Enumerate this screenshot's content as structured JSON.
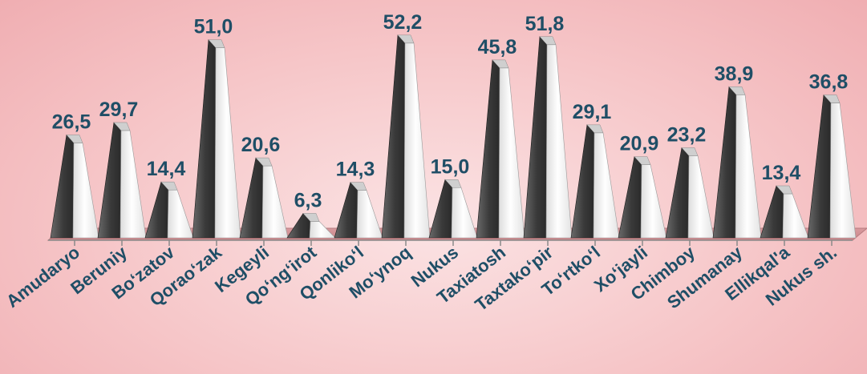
{
  "chart_data": {
    "type": "bar",
    "bar_shape": "3d-pyramid",
    "categories": [
      "Amudaryo",
      "Beruniy",
      "Bo‘zatov",
      "Qorao‘zak",
      "Kegeyli",
      "Qo‘ng‘irot",
      "Qonliko‘l",
      "Mo‘ynoq",
      "Nukus",
      "Taxiatosh",
      "Taxtako‘pir",
      "To‘rtko‘l",
      "Xo‘jayli",
      "Chimboy",
      "Shumanay",
      "Ellikqal'a",
      "Nukus sh."
    ],
    "values": [
      26.5,
      29.7,
      14.4,
      51.0,
      20.6,
      6.3,
      14.3,
      52.2,
      15.0,
      45.8,
      51.8,
      29.1,
      20.9,
      23.2,
      38.9,
      13.4,
      36.8
    ],
    "value_labels": [
      "26,5",
      "29,7",
      "14,4",
      "51,0",
      "20,6",
      "6,3",
      "14,3",
      "52,2",
      "15,0",
      "45,8",
      "51,8",
      "29,1",
      "20,9",
      "23,2",
      "38,9",
      "13,4",
      "36,8"
    ],
    "title": "",
    "xlabel": "",
    "ylabel": "",
    "ylim": [
      0,
      55
    ],
    "grid": false,
    "legend": "none",
    "colors": {
      "bar_dark": "#3f3f3f",
      "bar_light": "#ffffff",
      "label": "#1f4e66",
      "floor": "#cf8f93"
    }
  }
}
